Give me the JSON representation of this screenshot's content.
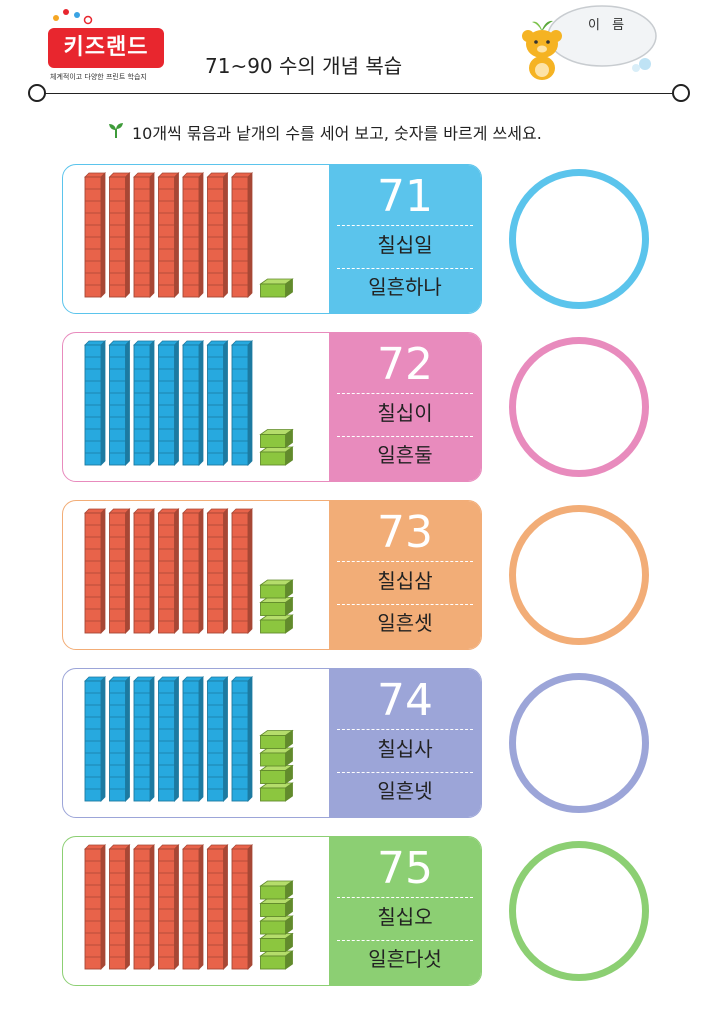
{
  "header": {
    "logo_text": "키즈랜드",
    "logo_tagline": "체계적이고 다양한 프린트 학습지",
    "title": "71~90 수의 개념 복습",
    "name_label": "이 름"
  },
  "instruction": "10개씩 묶음과 낱개의 수를 세어 보고, 숫자를 바르게 쓰세요.",
  "rows": [
    {
      "number": "71",
      "word_sino": "칠십일",
      "word_native": "일흔하나",
      "ones": 1,
      "tens": 7,
      "color": "#5bc4ec",
      "block_color": "tens-red"
    },
    {
      "number": "72",
      "word_sino": "칠십이",
      "word_native": "일흔둘",
      "ones": 2,
      "tens": 7,
      "color": "#e88bbd",
      "block_color": "tens-blue"
    },
    {
      "number": "73",
      "word_sino": "칠십삼",
      "word_native": "일흔셋",
      "ones": 3,
      "tens": 7,
      "color": "#f2ad77",
      "block_color": "tens-red"
    },
    {
      "number": "74",
      "word_sino": "칠십사",
      "word_native": "일흔넷",
      "ones": 4,
      "tens": 7,
      "color": "#9ca5d8",
      "block_color": "tens-blue"
    },
    {
      "number": "75",
      "word_sino": "칠십오",
      "word_native": "일흔다섯",
      "ones": 5,
      "tens": 7,
      "color": "#8ccf73",
      "block_color": "tens-red"
    }
  ],
  "colors": {
    "tens_red": "#e8634a",
    "tens_blue": "#27a9df",
    "ones_green": "#8cc63f",
    "logo_red": "#e8262e"
  }
}
